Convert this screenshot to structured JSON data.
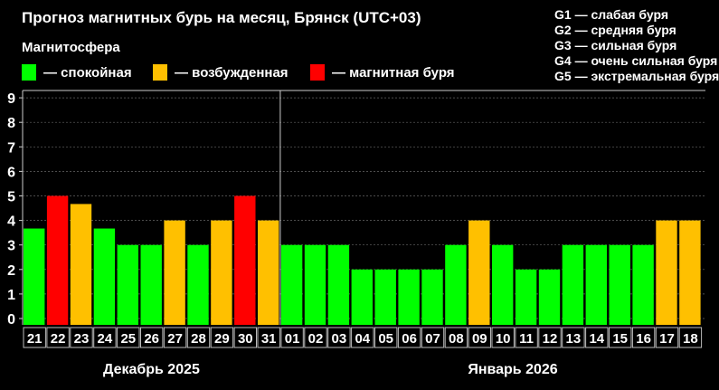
{
  "chart_data": {
    "type": "bar",
    "title": "Прогноз магнитных бурь на месяц, Брянск (UTC+03)",
    "subtitle": "Магнитосфера",
    "legend": [
      {
        "label": "— спокойная",
        "color": "#00ff00"
      },
      {
        "label": "— возбужденная",
        "color": "#ffc000"
      },
      {
        "label": "— магнитная буря",
        "color": "#ff0000"
      }
    ],
    "g_scale": [
      "G1 — слабая буря",
      "G2 — средняя буря",
      "G3 — сильная буря",
      "G4 — очень сильная буря",
      "G5 — экстремальная буря"
    ],
    "ylim": [
      0,
      9
    ],
    "yticks": [
      0,
      1,
      2,
      3,
      4,
      5,
      6,
      7,
      8,
      9
    ],
    "grid": true,
    "months": [
      {
        "label": "Декабрь 2025",
        "days": 11
      },
      {
        "label": "Январь 2026",
        "days": 18
      }
    ],
    "categories": [
      "21",
      "22",
      "23",
      "24",
      "25",
      "26",
      "27",
      "28",
      "29",
      "30",
      "31",
      "01",
      "02",
      "03",
      "04",
      "05",
      "06",
      "07",
      "08",
      "09",
      "10",
      "11",
      "12",
      "13",
      "14",
      "15",
      "16",
      "17",
      "18"
    ],
    "values": [
      3.67,
      5,
      4.67,
      3.67,
      3,
      3,
      4,
      3,
      4,
      5,
      4,
      3,
      3,
      3,
      2,
      2,
      2,
      2,
      3,
      4,
      3,
      2,
      2,
      3,
      3,
      3,
      3,
      4,
      4
    ],
    "levels": [
      "quiet",
      "storm",
      "active",
      "quiet",
      "quiet",
      "quiet",
      "active",
      "quiet",
      "active",
      "storm",
      "active",
      "quiet",
      "quiet",
      "quiet",
      "quiet",
      "quiet",
      "quiet",
      "quiet",
      "quiet",
      "active",
      "quiet",
      "quiet",
      "quiet",
      "quiet",
      "quiet",
      "quiet",
      "quiet",
      "active",
      "active"
    ],
    "level_colors": {
      "quiet": "#00ff00",
      "active": "#ffc000",
      "storm": "#ff0000"
    }
  }
}
